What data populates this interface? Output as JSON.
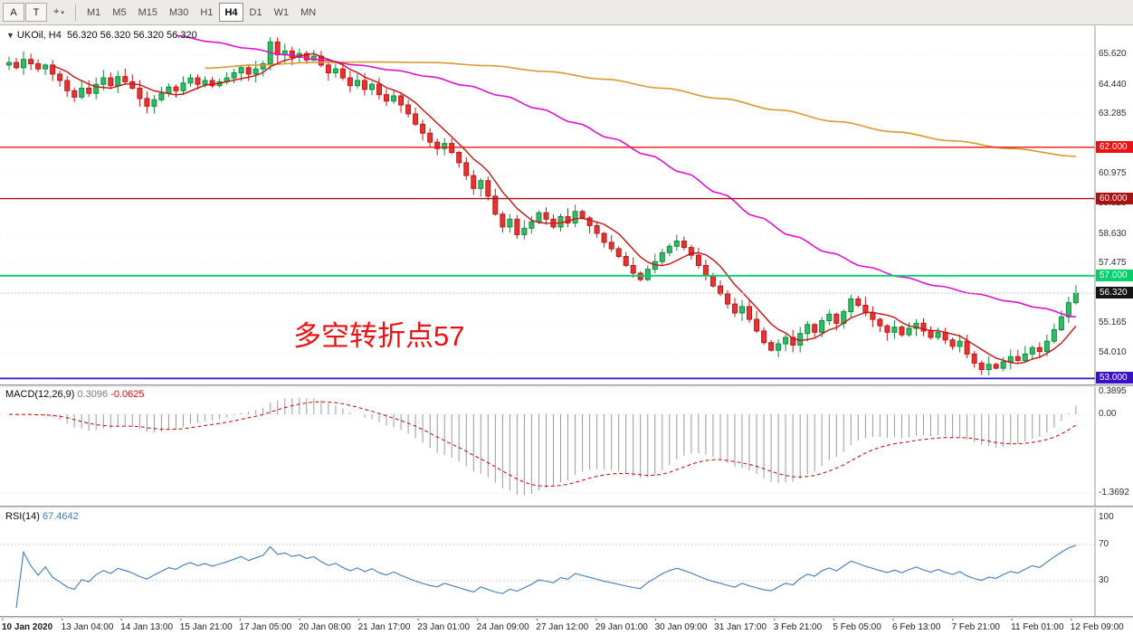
{
  "toolbar": {
    "tools": [
      {
        "label": "A",
        "name": "annotation-text-tool"
      },
      {
        "label": "T",
        "name": "text-label-tool"
      },
      {
        "label": "⌖",
        "name": "cursor-crosshair-tool",
        "dropdown": true
      }
    ],
    "dropdown_arrow": "▾",
    "timeframes": [
      "M1",
      "M5",
      "M15",
      "M30",
      "H1",
      "H4",
      "D1",
      "W1",
      "MN"
    ],
    "active_timeframe": "H4"
  },
  "chart": {
    "marker": "▼",
    "symbol": "UKOil, H4",
    "ohlc": "56.320 56.320 56.320 56.320",
    "annotation": "多空转折点57"
  },
  "macd_header": {
    "label": "MACD(12,26,9)",
    "value": "0.3096",
    "signal": "-0.0625"
  },
  "rsi_header": {
    "label": "RSI(14)",
    "value": "67.4642"
  },
  "chart_data": {
    "type": "candlestick",
    "symbol": "UKOil",
    "timeframe": "H4",
    "candles": {
      "first_open": 65.2,
      "closes": [
        65.3,
        65.1,
        65.42,
        65.25,
        65.05,
        65.2,
        64.85,
        64.6,
        64.2,
        63.95,
        64.3,
        64.1,
        64.45,
        64.7,
        64.4,
        64.75,
        64.55,
        64.3,
        63.9,
        63.6,
        63.85,
        64.1,
        64.35,
        64.2,
        64.5,
        64.7,
        64.45,
        64.6,
        64.4,
        64.55,
        64.7,
        64.9,
        65.1,
        64.85,
        65.05,
        65.25,
        66.1,
        65.6,
        65.75,
        65.5,
        65.65,
        65.4,
        65.55,
        65.2,
        64.9,
        65.05,
        64.7,
        64.4,
        64.6,
        64.25,
        64.45,
        64.05,
        63.8,
        64.0,
        63.65,
        63.3,
        62.9,
        62.55,
        62.2,
        61.95,
        62.15,
        61.8,
        61.4,
        60.9,
        60.4,
        60.7,
        60.1,
        59.4,
        58.9,
        59.2,
        58.6,
        58.85,
        59.1,
        59.45,
        59.2,
        58.9,
        59.3,
        59.05,
        59.5,
        59.25,
        58.95,
        58.65,
        58.3,
        58.05,
        57.75,
        57.4,
        57.1,
        56.85,
        57.25,
        57.55,
        57.9,
        58.15,
        58.35,
        58.1,
        57.8,
        57.4,
        57.0,
        56.6,
        56.3,
        55.9,
        55.55,
        55.8,
        55.3,
        54.85,
        54.4,
        54.1,
        54.35,
        54.6,
        54.3,
        54.75,
        55.1,
        54.8,
        55.25,
        55.5,
        55.15,
        55.6,
        56.1,
        55.85,
        55.55,
        55.3,
        55.05,
        54.8,
        55.0,
        54.7,
        54.95,
        55.15,
        54.85,
        54.6,
        54.8,
        54.5,
        54.25,
        54.45,
        53.95,
        53.6,
        53.35,
        53.55,
        53.4,
        53.65,
        53.85,
        53.7,
        53.95,
        54.2,
        54.05,
        54.45,
        54.9,
        55.4,
        55.95,
        56.32
      ]
    },
    "fast_ma_period": 7,
    "ma_magenta": [
      [
        23,
        66.35
      ],
      [
        28,
        66.1
      ],
      [
        33,
        65.85
      ],
      [
        38,
        65.6
      ],
      [
        43,
        65.4
      ],
      [
        48,
        65.2
      ],
      [
        53,
        65.0
      ],
      [
        58,
        64.75
      ],
      [
        63,
        64.4
      ],
      [
        68,
        64.0
      ],
      [
        73,
        63.5
      ],
      [
        78,
        62.95
      ],
      [
        83,
        62.35
      ],
      [
        88,
        61.7
      ],
      [
        93,
        61.0
      ],
      [
        98,
        60.2
      ],
      [
        103,
        59.3
      ],
      [
        108,
        58.55
      ],
      [
        113,
        57.9
      ],
      [
        118,
        57.35
      ],
      [
        123,
        56.95
      ],
      [
        128,
        56.6
      ],
      [
        133,
        56.3
      ],
      [
        138,
        56.0
      ],
      [
        142,
        55.75
      ],
      [
        147,
        55.4
      ]
    ],
    "ma_orange": [
      [
        27,
        65.08
      ],
      [
        34,
        65.2
      ],
      [
        42,
        65.3
      ],
      [
        50,
        65.32
      ],
      [
        58,
        65.3
      ],
      [
        66,
        65.18
      ],
      [
        74,
        64.95
      ],
      [
        82,
        64.65
      ],
      [
        90,
        64.3
      ],
      [
        98,
        63.9
      ],
      [
        106,
        63.45
      ],
      [
        114,
        63.0
      ],
      [
        122,
        62.6
      ],
      [
        130,
        62.25
      ],
      [
        138,
        61.95
      ],
      [
        147,
        61.65
      ]
    ],
    "hlines": [
      {
        "price": 62.0,
        "label": "62.000",
        "color": "#ee1111",
        "width": 1.4
      },
      {
        "price": 60.0,
        "label": "60.000",
        "color": "#aa1111",
        "width": 1.4
      },
      {
        "price": 57.0,
        "label": "57.000",
        "color": "#00d169",
        "width": 1.8
      },
      {
        "price": 53.0,
        "label": "53.000",
        "color": "#3a10c8",
        "width": 1.8
      }
    ],
    "current_price": {
      "value": 56.32,
      "label": "56.320",
      "color": "#141414"
    },
    "price_ticks": [
      "65.620",
      "64.440",
      "63.285",
      "60.975",
      "59.820",
      "58.630",
      "57.475",
      "55.165",
      "54.010"
    ],
    "macd_scale": [
      {
        "text": "0.3895",
        "value": 0.3895
      },
      {
        "text": "0.00",
        "value": 0
      },
      {
        "text": "-1.3692",
        "value": -1.3692
      }
    ],
    "rsi_scale": [
      {
        "text": "100",
        "value": 100
      },
      {
        "text": "70",
        "value": 70
      },
      {
        "text": "30",
        "value": 30
      }
    ],
    "rsi_levels": [
      70,
      30
    ],
    "time_labels": [
      "10 Jan 2020",
      "13 Jan 04:00",
      "14 Jan 13:00",
      "15 Jan 21:00",
      "17 Jan 05:00",
      "20 Jan 08:00",
      "21 Jan 17:00",
      "23 Jan 01:00",
      "24 Jan 09:00",
      "27 Jan 12:00",
      "29 Jan 01:00",
      "30 Jan 09:00",
      "31 Jan 17:00",
      "3 Feb 21:00",
      "5 Feb 05:00",
      "6 Feb 13:00",
      "7 Feb 21:00",
      "11 Feb 01:00",
      "12 Feb 09:00"
    ],
    "colors": {
      "up": "#0f8a3d",
      "up_fill": "#33bb66",
      "down": "#bf1717",
      "down_fill": "#e43535",
      "ma_fast": "#cc1111",
      "ma_magenta": "#dd14cf",
      "ma_orange": "#d79a2e",
      "macd_hist": "#9a9a9a",
      "macd_signal": "#cc0000",
      "rsi": "#3f7cba"
    }
  }
}
